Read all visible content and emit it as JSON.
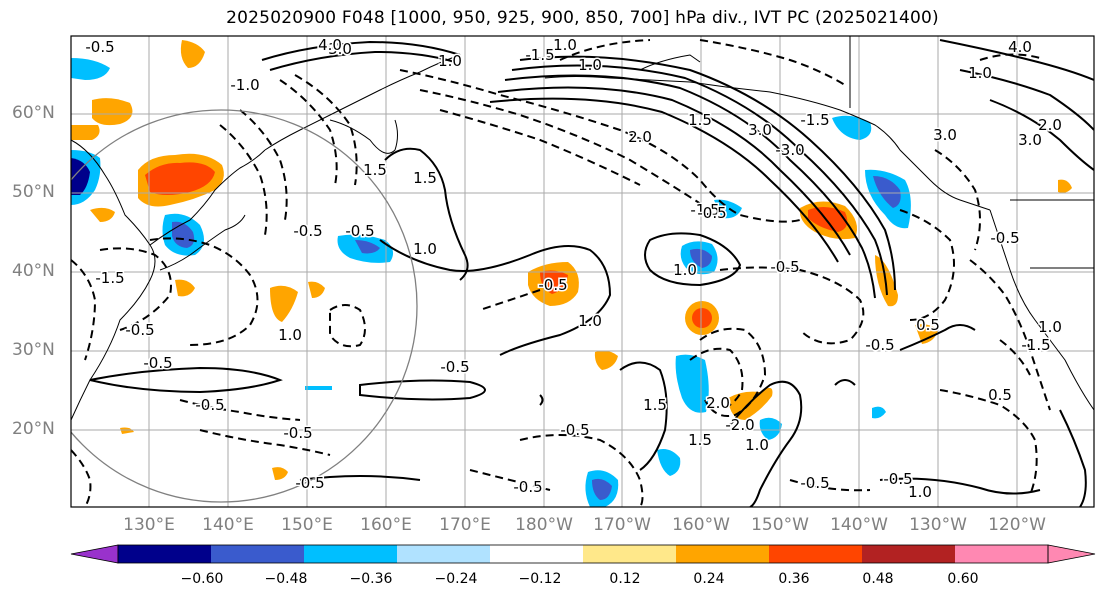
{
  "title": "2025020900 F048 [1000, 950, 925, 900, 850, 700] hPa div., IVT PC (2025021400)",
  "map": {
    "lat_labels": [
      "60°N",
      "50°N",
      "40°N",
      "30°N",
      "20°N"
    ],
    "lon_labels": [
      "130°E",
      "140°E",
      "150°E",
      "160°E",
      "170°E",
      "180°W",
      "170°W",
      "160°W",
      "150°W",
      "140°W",
      "130°W",
      "120°W"
    ],
    "contour_labels": [
      "-0.5",
      "0.5",
      "1.0",
      "-1.0",
      "1.5",
      "-1.5",
      "2.0",
      "-2.0",
      "3.0",
      "-3.0",
      "4.0"
    ]
  },
  "colorbar": {
    "ticks": [
      "−0.60",
      "−0.48",
      "−0.36",
      "−0.24",
      "−0.12",
      "0.12",
      "0.24",
      "0.36",
      "0.48",
      "0.60"
    ],
    "colors": [
      "#9932cc",
      "#00008b",
      "#3a5bcd",
      "#00bfff",
      "#b0e2ff",
      "#ffffff",
      "#ffe88a",
      "#ffa500",
      "#ff4500",
      "#b22222",
      "#ff88b2"
    ]
  }
}
